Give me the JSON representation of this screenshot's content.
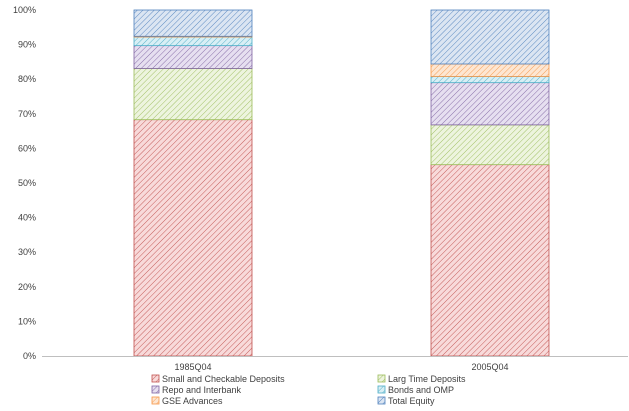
{
  "chart_data": {
    "type": "bar",
    "stacked": true,
    "percent": true,
    "categories": [
      "1985Q04",
      "2005Q04"
    ],
    "ylim": [
      0,
      100
    ],
    "yticks": [
      "0%",
      "10%",
      "20%",
      "30%",
      "40%",
      "50%",
      "60%",
      "70%",
      "80%",
      "90%",
      "100%"
    ],
    "ytick_values": [
      0,
      10,
      20,
      30,
      40,
      50,
      60,
      70,
      80,
      90,
      100
    ],
    "grid": false,
    "legend_position": "bottom",
    "series": [
      {
        "name": "Small and Checkable Deposits",
        "values": [
          68.3,
          55.3
        ],
        "color": "#c0504d",
        "fill": "#f8dada"
      },
      {
        "name": "Larg Time Deposits",
        "values": [
          14.8,
          11.5
        ],
        "color": "#9bbb59",
        "fill": "#edf4de"
      },
      {
        "name": "Repo and Interbank",
        "values": [
          6.6,
          12.2
        ],
        "color": "#8064a2",
        "fill": "#e6dff0"
      },
      {
        "name": "Bonds and OMP",
        "values": [
          2.5,
          1.8
        ],
        "color": "#4bacc6",
        "fill": "#d8eff5"
      },
      {
        "name": "GSE Advances",
        "values": [
          0.2,
          3.6
        ],
        "color": "#f79646",
        "fill": "#fde6d2"
      },
      {
        "name": "Total Equity",
        "values": [
          7.6,
          15.6
        ],
        "color": "#4f81bd",
        "fill": "#dbe5f2"
      }
    ]
  }
}
